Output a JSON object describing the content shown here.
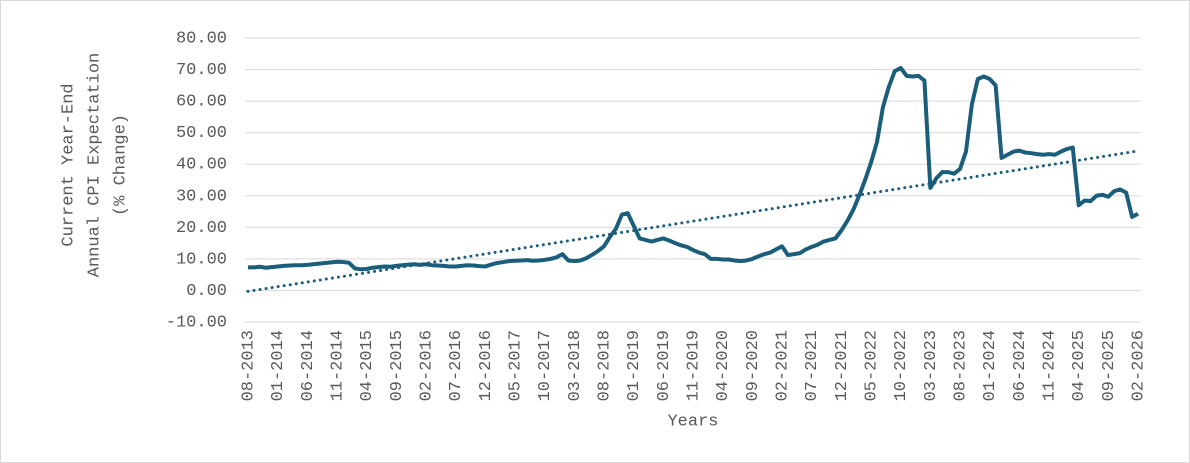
{
  "chart_data": {
    "type": "line",
    "y_label": [
      "Current Year-End",
      "Annual CPI Expectation",
      "(% Change)"
    ],
    "x_label": "Years",
    "categories": [
      "08-2013",
      null,
      null,
      null,
      null,
      "01-2014",
      null,
      null,
      null,
      null,
      "06-2014",
      null,
      null,
      null,
      null,
      "11-2014",
      null,
      null,
      null,
      null,
      "04-2015",
      null,
      null,
      null,
      null,
      "09-2015",
      null,
      null,
      null,
      null,
      "02-2016",
      null,
      null,
      null,
      null,
      "07-2016",
      null,
      null,
      null,
      null,
      "12-2016",
      null,
      null,
      null,
      null,
      "05-2017",
      null,
      null,
      null,
      null,
      "10-2017",
      null,
      null,
      null,
      null,
      "03-2018",
      null,
      null,
      null,
      null,
      "08-2018",
      null,
      null,
      null,
      null,
      "01-2019",
      null,
      null,
      null,
      null,
      "06-2019",
      null,
      null,
      null,
      null,
      "11-2019",
      null,
      null,
      null,
      null,
      "04-2020",
      null,
      null,
      null,
      null,
      "09-2020",
      null,
      null,
      null,
      null,
      "02-2021",
      null,
      null,
      null,
      null,
      "07-2021",
      null,
      null,
      null,
      null,
      "12-2021",
      null,
      null,
      null,
      null,
      "05-2022",
      null,
      null,
      null,
      null,
      "10-2022",
      null,
      null,
      null,
      null,
      "03-2023",
      null,
      null,
      null,
      null,
      "08-2023",
      null,
      null,
      null,
      null,
      "01-2024",
      null,
      null,
      null,
      null,
      "06-2024",
      null,
      null,
      null,
      null,
      "11-2024",
      null,
      null,
      null,
      null,
      "04-2025",
      null,
      null,
      null,
      null,
      "09-2025",
      null,
      null,
      null,
      null,
      "02-2026"
    ],
    "series": [
      {
        "color": "#1b5e7b",
        "values": [
          7.3,
          7.3,
          7.5,
          7.2,
          7.4,
          7.6,
          7.8,
          7.9,
          8.0,
          8.0,
          8.1,
          8.3,
          8.5,
          8.7,
          8.9,
          9.1,
          9.0,
          8.8,
          7.0,
          6.7,
          6.8,
          7.2,
          7.4,
          7.6,
          7.5,
          7.8,
          8.0,
          8.2,
          8.3,
          8.1,
          8.3,
          8.0,
          7.9,
          7.8,
          7.6,
          7.6,
          7.8,
          8.0,
          7.9,
          7.7,
          7.6,
          8.2,
          8.7,
          9.0,
          9.3,
          9.4,
          9.5,
          9.6,
          9.4,
          9.5,
          9.7,
          10.0,
          10.5,
          11.5,
          9.5,
          9.3,
          9.5,
          10.2,
          11.3,
          12.5,
          14.0,
          17.0,
          19.5,
          24.0,
          24.5,
          20.5,
          16.5,
          16.0,
          15.5,
          16.0,
          16.5,
          15.8,
          15.0,
          14.3,
          13.8,
          12.8,
          12.0,
          11.5,
          10.0,
          10.0,
          9.8,
          9.8,
          9.5,
          9.3,
          9.5,
          10.0,
          10.8,
          11.5,
          12.0,
          13.0,
          14.0,
          11.2,
          11.5,
          11.8,
          13.0,
          13.8,
          14.5,
          15.5,
          16.0,
          16.5,
          19.0,
          22.0,
          25.5,
          30.0,
          35.0,
          40.5,
          47.0,
          58.0,
          64.5,
          69.5,
          70.5,
          68.0,
          67.8,
          68.0,
          66.5,
          32.5,
          35.5,
          37.5,
          37.5,
          37.0,
          38.5,
          44.0,
          59.0,
          67.0,
          67.8,
          67.0,
          65.0,
          42.0,
          43.0,
          44.0,
          44.3,
          43.7,
          43.5,
          43.2,
          43.0,
          43.2,
          43.0,
          44.0,
          44.8,
          45.3,
          27.0,
          28.5,
          28.3,
          30.0,
          30.3,
          29.7,
          31.5,
          32.0,
          31.0,
          23.3,
          24.3
        ]
      }
    ],
    "trendline": {
      "color": "#1b5e7b",
      "start": -0.3,
      "end": 44.2
    },
    "ylim": [
      -10,
      80
    ],
    "yticks": [
      {
        "value": -10,
        "label": "-10.00"
      },
      {
        "value": 0,
        "label": "0.00"
      },
      {
        "value": 10,
        "label": "10.00"
      },
      {
        "value": 20,
        "label": "20.00"
      },
      {
        "value": 30,
        "label": "30.00"
      },
      {
        "value": 40,
        "label": "40.00"
      },
      {
        "value": 50,
        "label": "50.00"
      },
      {
        "value": 60,
        "label": "60.00"
      },
      {
        "value": 70,
        "label": "70.00"
      },
      {
        "value": 80,
        "label": "80.00"
      }
    ],
    "grid": true
  }
}
